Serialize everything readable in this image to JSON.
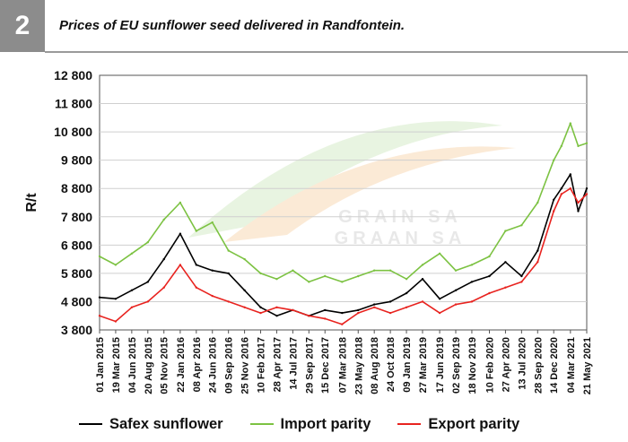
{
  "figure": {
    "number": "2",
    "title": "Prices of EU sunflower seed delivered in Randfontein."
  },
  "watermark": {
    "line1": "GRAIN SA",
    "line2": "GRAAN SA"
  },
  "chart_data": {
    "type": "line",
    "title": "Prices of EU sunflower seed delivered in Randfontein.",
    "xlabel": "",
    "ylabel": "R/t",
    "ylim": [
      3800,
      12800
    ],
    "yticks": [
      "12 800",
      "11 800",
      "10 800",
      "9 800",
      "8 800",
      "7 800",
      "6 800",
      "5 800",
      "4 800",
      "3 800"
    ],
    "xlim": [
      "2015-01-01",
      "2021-05-21"
    ],
    "xticks": [
      "01 Jan 2015",
      "19 Mar 2015",
      "04 Jun 2015",
      "20 Aug 2015",
      "05 Nov 2015",
      "22 Jan 2016",
      "08 Apr 2016",
      "24 Jun 2016",
      "09 Sep 2016",
      "25 Nov 2016",
      "10 Feb 2017",
      "28 Apr 2017",
      "14 Jul 2017",
      "29 Sep 2017",
      "15 Dec 2017",
      "07 Mar 2018",
      "23 May 2018",
      "08 Aug 2018",
      "24 Oct 2018",
      "09 Jan 2019",
      "27 Mar 2019",
      "17 Jun 2019",
      "02 Sep 2019",
      "18 Nov 2019",
      "10 Feb 2020",
      "27 Apr 2020",
      "13 Jul 2020",
      "28 Sep 2020",
      "14 Dec 2020",
      "04 Mar 2021",
      "21 May 2021"
    ],
    "grid": true,
    "legend_position": "bottom",
    "series": [
      {
        "name": "Safex sunflower",
        "color": "#000000",
        "x": [
          "2015-01-01",
          "2015-03-19",
          "2015-06-04",
          "2015-08-20",
          "2015-11-05",
          "2016-01-22",
          "2016-04-08",
          "2016-06-24",
          "2016-09-09",
          "2016-11-25",
          "2017-02-10",
          "2017-04-28",
          "2017-07-14",
          "2017-09-29",
          "2017-12-15",
          "2018-03-07",
          "2018-05-23",
          "2018-08-08",
          "2018-10-24",
          "2019-01-09",
          "2019-03-27",
          "2019-06-17",
          "2019-09-02",
          "2019-11-18",
          "2020-02-10",
          "2020-04-27",
          "2020-07-13",
          "2020-09-28",
          "2020-12-14",
          "2021-01-20",
          "2021-03-04",
          "2021-04-10",
          "2021-05-21"
        ],
        "y": [
          4950,
          4900,
          5200,
          5500,
          6300,
          7200,
          6100,
          5900,
          5800,
          5200,
          4600,
          4300,
          4500,
          4300,
          4500,
          4400,
          4500,
          4700,
          4800,
          5100,
          5600,
          4900,
          5200,
          5500,
          5700,
          6200,
          5700,
          6600,
          8400,
          8800,
          9300,
          8000,
          8800
        ]
      },
      {
        "name": "Import parity",
        "color": "#7cc242",
        "x": [
          "2015-01-01",
          "2015-03-19",
          "2015-06-04",
          "2015-08-20",
          "2015-11-05",
          "2016-01-22",
          "2016-04-08",
          "2016-06-24",
          "2016-09-09",
          "2016-11-25",
          "2017-02-10",
          "2017-04-28",
          "2017-07-14",
          "2017-09-29",
          "2017-12-15",
          "2018-03-07",
          "2018-05-23",
          "2018-08-08",
          "2018-10-24",
          "2019-01-09",
          "2019-03-27",
          "2019-06-17",
          "2019-09-02",
          "2019-11-18",
          "2020-02-10",
          "2020-04-27",
          "2020-07-13",
          "2020-09-28",
          "2020-12-14",
          "2021-01-20",
          "2021-03-04",
          "2021-04-10",
          "2021-05-21"
        ],
        "y": [
          6400,
          6100,
          6500,
          6900,
          7700,
          8300,
          7300,
          7600,
          6600,
          6300,
          5800,
          5600,
          5900,
          5500,
          5700,
          5500,
          5700,
          5900,
          5900,
          5600,
          6100,
          6500,
          5900,
          6100,
          6400,
          7300,
          7500,
          8300,
          9800,
          10300,
          11100,
          10300,
          10400
        ]
      },
      {
        "name": "Export parity",
        "color": "#e8231f",
        "x": [
          "2015-01-01",
          "2015-03-19",
          "2015-06-04",
          "2015-08-20",
          "2015-11-05",
          "2016-01-22",
          "2016-04-08",
          "2016-06-24",
          "2016-09-09",
          "2016-11-25",
          "2017-02-10",
          "2017-04-28",
          "2017-07-14",
          "2017-09-29",
          "2017-12-15",
          "2018-03-07",
          "2018-05-23",
          "2018-08-08",
          "2018-10-24",
          "2019-01-09",
          "2019-03-27",
          "2019-06-17",
          "2019-09-02",
          "2019-11-18",
          "2020-02-10",
          "2020-04-27",
          "2020-07-13",
          "2020-09-28",
          "2020-12-14",
          "2021-01-20",
          "2021-03-04",
          "2021-04-10",
          "2021-05-21"
        ],
        "y": [
          4300,
          4100,
          4600,
          4800,
          5300,
          6100,
          5300,
          5000,
          4800,
          4600,
          4400,
          4600,
          4500,
          4300,
          4200,
          4000,
          4400,
          4600,
          4400,
          4600,
          4800,
          4400,
          4700,
          4800,
          5100,
          5300,
          5500,
          6200,
          8000,
          8600,
          8800,
          8300,
          8600
        ]
      }
    ]
  }
}
